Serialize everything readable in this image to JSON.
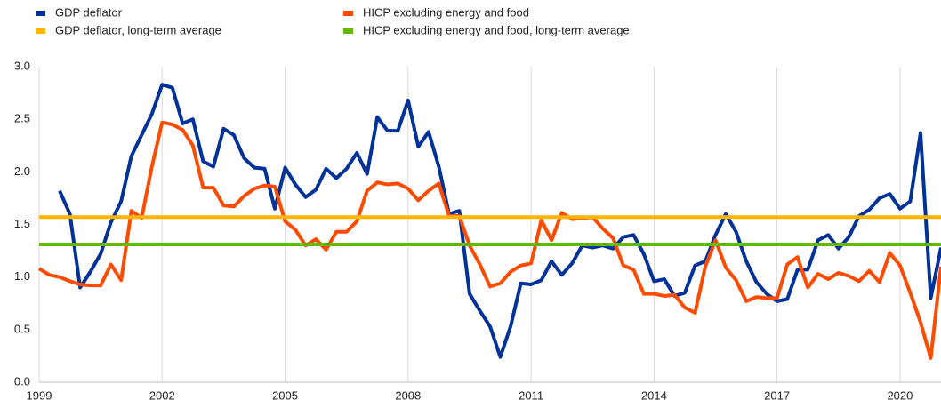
{
  "chart_data": {
    "type": "line",
    "x": [
      1999,
      1999.25,
      1999.5,
      1999.75,
      2000,
      2000.25,
      2000.5,
      2000.75,
      2001,
      2001.25,
      2001.5,
      2001.75,
      2002,
      2002.25,
      2002.5,
      2002.75,
      2003,
      2003.25,
      2003.5,
      2003.75,
      2004,
      2004.25,
      2004.5,
      2004.75,
      2005,
      2005.25,
      2005.5,
      2005.75,
      2006,
      2006.25,
      2006.5,
      2006.75,
      2007,
      2007.25,
      2007.5,
      2007.75,
      2008,
      2008.25,
      2008.5,
      2008.75,
      2009,
      2009.25,
      2009.5,
      2009.75,
      2010,
      2010.25,
      2010.5,
      2010.75,
      2011,
      2011.25,
      2011.5,
      2011.75,
      2012,
      2012.25,
      2012.5,
      2012.75,
      2013,
      2013.25,
      2013.5,
      2013.75,
      2014,
      2014.25,
      2014.5,
      2014.75,
      2015,
      2015.25,
      2015.5,
      2015.75,
      2016,
      2016.25,
      2016.5,
      2016.75,
      2017,
      2017.25,
      2017.5,
      2017.75,
      2018,
      2018.25,
      2018.5,
      2018.75,
      2019,
      2019.25,
      2019.5,
      2019.75,
      2020,
      2020.25,
      2020.5,
      2020.75,
      2021
    ],
    "series": [
      {
        "name": "GDP deflator",
        "color": "#003299",
        "values": [
          null,
          null,
          1.82,
          1.6,
          0.9,
          1.05,
          1.22,
          1.52,
          1.72,
          2.15,
          2.35,
          2.55,
          2.83,
          2.8,
          2.46,
          2.5,
          2.1,
          2.05,
          2.41,
          2.35,
          2.13,
          2.04,
          2.03,
          1.65,
          2.04,
          1.88,
          1.76,
          1.83,
          2.03,
          1.94,
          2.03,
          2.18,
          1.98,
          2.52,
          2.39,
          2.39,
          2.68,
          2.24,
          2.38,
          2.05,
          1.6,
          1.63,
          0.84,
          0.68,
          0.53,
          0.24,
          0.53,
          0.94,
          0.93,
          0.97,
          1.15,
          1.02,
          1.13,
          1.3,
          1.28,
          1.3,
          1.27,
          1.38,
          1.4,
          1.22,
          0.96,
          0.98,
          0.82,
          0.85,
          1.11,
          1.15,
          1.4,
          1.6,
          1.43,
          1.15,
          0.95,
          0.84,
          0.77,
          0.79,
          1.07,
          1.07,
          1.35,
          1.4,
          1.27,
          1.38,
          1.58,
          1.64,
          1.75,
          1.79,
          1.65,
          1.72,
          2.37,
          0.8,
          1.28
        ]
      },
      {
        "name": "HICP excluding energy and food",
        "color": "#ff4b00",
        "values": [
          1.08,
          1.02,
          1.0,
          0.96,
          0.93,
          0.92,
          0.92,
          1.12,
          0.97,
          1.63,
          1.56,
          2.05,
          2.47,
          2.45,
          2.4,
          2.25,
          1.85,
          1.85,
          1.68,
          1.67,
          1.77,
          1.84,
          1.87,
          1.86,
          1.53,
          1.45,
          1.3,
          1.36,
          1.26,
          1.43,
          1.43,
          1.53,
          1.82,
          1.9,
          1.88,
          1.89,
          1.84,
          1.73,
          1.82,
          1.89,
          1.58,
          1.58,
          1.3,
          1.12,
          0.91,
          0.94,
          1.05,
          1.11,
          1.13,
          1.54,
          1.35,
          1.61,
          1.55,
          1.56,
          1.57,
          1.46,
          1.37,
          1.11,
          1.07,
          0.84,
          0.84,
          0.82,
          0.83,
          0.71,
          0.66,
          1.1,
          1.35,
          1.09,
          0.97,
          0.77,
          0.81,
          0.8,
          0.8,
          1.12,
          1.19,
          0.9,
          1.03,
          0.98,
          1.04,
          1.01,
          0.96,
          1.06,
          0.95,
          1.23,
          1.11,
          0.85,
          0.57,
          0.23,
          1.1
        ]
      }
    ],
    "reference_lines": [
      {
        "name": "GDP deflator, long-term average",
        "color": "#ffb400",
        "value": 1.57
      },
      {
        "name": "HICP excluding energy and food, long-term average",
        "color": "#65b800",
        "value": 1.31
      }
    ],
    "xlim": [
      1999,
      2021
    ],
    "xticks": [
      1999,
      2002,
      2005,
      2008,
      2011,
      2014,
      2017,
      2020
    ],
    "ylim": [
      0,
      3
    ],
    "yticks": [
      {
        "value": 0,
        "label": "0.0"
      },
      0.5,
      {
        "value": 1,
        "label": "1.0"
      },
      1.5,
      {
        "value": 2,
        "label": "2.0"
      },
      2.5,
      {
        "value": 3,
        "label": "3.0"
      }
    ],
    "grid": true
  }
}
